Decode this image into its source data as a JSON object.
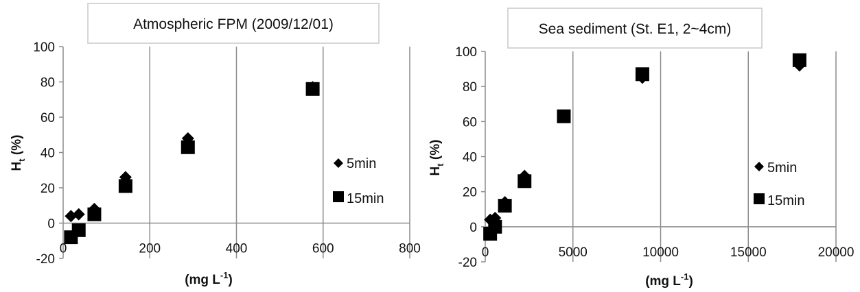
{
  "chart_data": [
    {
      "type": "scatter",
      "title": "Atmospheric FPM (2009/12/01)",
      "ylabel": "H",
      "ylabel_sub": "t",
      "ylabel_unit": " (%)",
      "xlabel": "(mg L",
      "xlabel_sup": "-1",
      "xlabel_end": ")",
      "xlim": [
        0,
        800
      ],
      "ylim": [
        -20,
        100
      ],
      "xticks": [
        0,
        200,
        400,
        600,
        800
      ],
      "yticks": [
        -20,
        0,
        20,
        40,
        60,
        80,
        100
      ],
      "grid": "vertical",
      "legend_position": "right",
      "series": [
        {
          "name": "5min",
          "marker": "diamond",
          "color": "#000000",
          "points": [
            [
              18,
              4
            ],
            [
              36,
              5
            ],
            [
              72,
              8
            ],
            [
              144,
              26
            ],
            [
              288,
              48
            ],
            [
              576,
              77
            ]
          ]
        },
        {
          "name": "15min",
          "marker": "square",
          "color": "#000000",
          "points": [
            [
              18,
              -8
            ],
            [
              36,
              -4
            ],
            [
              72,
              5
            ],
            [
              144,
              21
            ],
            [
              288,
              43
            ],
            [
              576,
              76
            ]
          ]
        }
      ]
    },
    {
      "type": "scatter",
      "title": "Sea sediment (St. E1, 2~4cm)",
      "ylabel": "H",
      "ylabel_sub": "t",
      "ylabel_unit": " (%)",
      "xlabel": "(mg L",
      "xlabel_sup": "-1",
      "xlabel_end": ")",
      "xlim": [
        0,
        20000
      ],
      "ylim": [
        -20,
        100
      ],
      "xticks": [
        0,
        5000,
        10000,
        15000,
        20000
      ],
      "yticks": [
        -20,
        0,
        20,
        40,
        60,
        80,
        100
      ],
      "grid": "vertical",
      "legend_position": "right",
      "series": [
        {
          "name": "5min",
          "marker": "diamond",
          "color": "#000000",
          "points": [
            [
              280,
              4
            ],
            [
              560,
              5
            ],
            [
              1120,
              14
            ],
            [
              2240,
              29
            ],
            [
              4480,
              63
            ],
            [
              8960,
              85
            ],
            [
              17920,
              92
            ]
          ]
        },
        {
          "name": "15min",
          "marker": "square",
          "color": "#000000",
          "points": [
            [
              280,
              -4
            ],
            [
              560,
              0
            ],
            [
              1120,
              12
            ],
            [
              2240,
              26
            ],
            [
              4480,
              63
            ],
            [
              8960,
              87
            ],
            [
              17920,
              95
            ]
          ]
        }
      ]
    }
  ]
}
